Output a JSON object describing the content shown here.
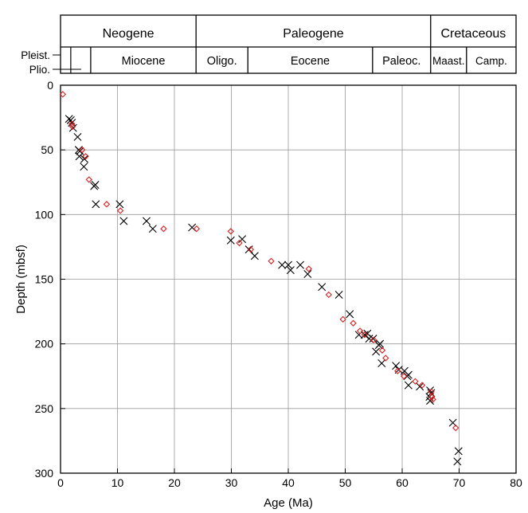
{
  "chart_data": {
    "type": "scatter",
    "title": "",
    "xlabel": "Age (Ma)",
    "ylabel": "Depth (mbsf)",
    "xlim": [
      0,
      80
    ],
    "ylim": [
      0,
      300
    ],
    "y_inverted": true,
    "grid": true,
    "x_ticks": [
      0,
      10,
      20,
      30,
      40,
      50,
      60,
      70,
      80
    ],
    "y_ticks": [
      0,
      50,
      100,
      150,
      200,
      250,
      300
    ],
    "series": [
      {
        "marker": "x",
        "color": "#000000",
        "points": [
          [
            1.5,
            26
          ],
          [
            1.8,
            27
          ],
          [
            2.0,
            29
          ],
          [
            2.2,
            33
          ],
          [
            3.0,
            40
          ],
          [
            3.2,
            50
          ],
          [
            3.4,
            51
          ],
          [
            3.3,
            55
          ],
          [
            4.2,
            57
          ],
          [
            4.1,
            63
          ],
          [
            5.9,
            78
          ],
          [
            6.1,
            77
          ],
          [
            6.2,
            92
          ],
          [
            10.4,
            92
          ],
          [
            11.1,
            105
          ],
          [
            15.1,
            105
          ],
          [
            16.2,
            111
          ],
          [
            23.1,
            110
          ],
          [
            29.9,
            120
          ],
          [
            31.9,
            119
          ],
          [
            33.1,
            127
          ],
          [
            34.1,
            132
          ],
          [
            38.9,
            139
          ],
          [
            40.0,
            139
          ],
          [
            40.4,
            143
          ],
          [
            42.1,
            139
          ],
          [
            43.4,
            146
          ],
          [
            45.9,
            156
          ],
          [
            48.9,
            162
          ],
          [
            50.8,
            177
          ],
          [
            52.4,
            193
          ],
          [
            53.4,
            193
          ],
          [
            53.9,
            192
          ],
          [
            54.2,
            196
          ],
          [
            54.9,
            196
          ],
          [
            55.9,
            201
          ],
          [
            56.1,
            200
          ],
          [
            55.4,
            206
          ],
          [
            56.4,
            215
          ],
          [
            58.9,
            217
          ],
          [
            59.4,
            220
          ],
          [
            60.4,
            221
          ],
          [
            61.1,
            224
          ],
          [
            60.9,
            225
          ],
          [
            61.1,
            232
          ],
          [
            63.1,
            233
          ],
          [
            64.9,
            236
          ],
          [
            65.1,
            238
          ],
          [
            64.8,
            241
          ],
          [
            64.9,
            244
          ],
          [
            68.9,
            261
          ],
          [
            69.9,
            283
          ],
          [
            69.7,
            291
          ]
        ]
      },
      {
        "marker": "diamond",
        "color": "#d92020",
        "points": [
          [
            0.4,
            7
          ],
          [
            2.0,
            30
          ],
          [
            2.1,
            32
          ],
          [
            3.8,
            50
          ],
          [
            4.4,
            55
          ],
          [
            5.0,
            73
          ],
          [
            8.1,
            92
          ],
          [
            10.5,
            97
          ],
          [
            18.1,
            111
          ],
          [
            23.9,
            111
          ],
          [
            29.9,
            113
          ],
          [
            31.4,
            122
          ],
          [
            33.4,
            127
          ],
          [
            37.0,
            136
          ],
          [
            43.6,
            142
          ],
          [
            47.1,
            162
          ],
          [
            49.6,
            181
          ],
          [
            51.4,
            184
          ],
          [
            52.6,
            190
          ],
          [
            53.4,
            193
          ],
          [
            55.0,
            197
          ],
          [
            56.5,
            205
          ],
          [
            57.1,
            211
          ],
          [
            59.2,
            221
          ],
          [
            60.3,
            225
          ],
          [
            62.3,
            229
          ],
          [
            63.5,
            232
          ],
          [
            65.1,
            237
          ],
          [
            65.2,
            241
          ],
          [
            65.4,
            243
          ],
          [
            69.4,
            265
          ]
        ]
      }
    ],
    "stratigraphy": {
      "epochs_row": [
        {
          "name": "Neogene",
          "start": 0,
          "end": 23.8
        },
        {
          "name": "Paleogene",
          "start": 23.8,
          "end": 65
        },
        {
          "name": "Cretaceous",
          "start": 65,
          "end": 80
        }
      ],
      "stages_row": [
        {
          "name": "Miocene",
          "start": 5.3,
          "end": 23.8
        },
        {
          "name": "Oligo.",
          "start": 23.8,
          "end": 32.9
        },
        {
          "name": "Eocene",
          "start": 32.9,
          "end": 54.8
        },
        {
          "name": "Paleoc.",
          "start": 54.8,
          "end": 65
        },
        {
          "name": "Maast.",
          "start": 65,
          "end": 71.3
        },
        {
          "name": "Camp.",
          "start": 71.3,
          "end": 80
        }
      ],
      "left_labels": [
        "Pleist.",
        "Plio."
      ],
      "pleistocene_end": 1.8,
      "pliocene_end": 5.3
    }
  }
}
